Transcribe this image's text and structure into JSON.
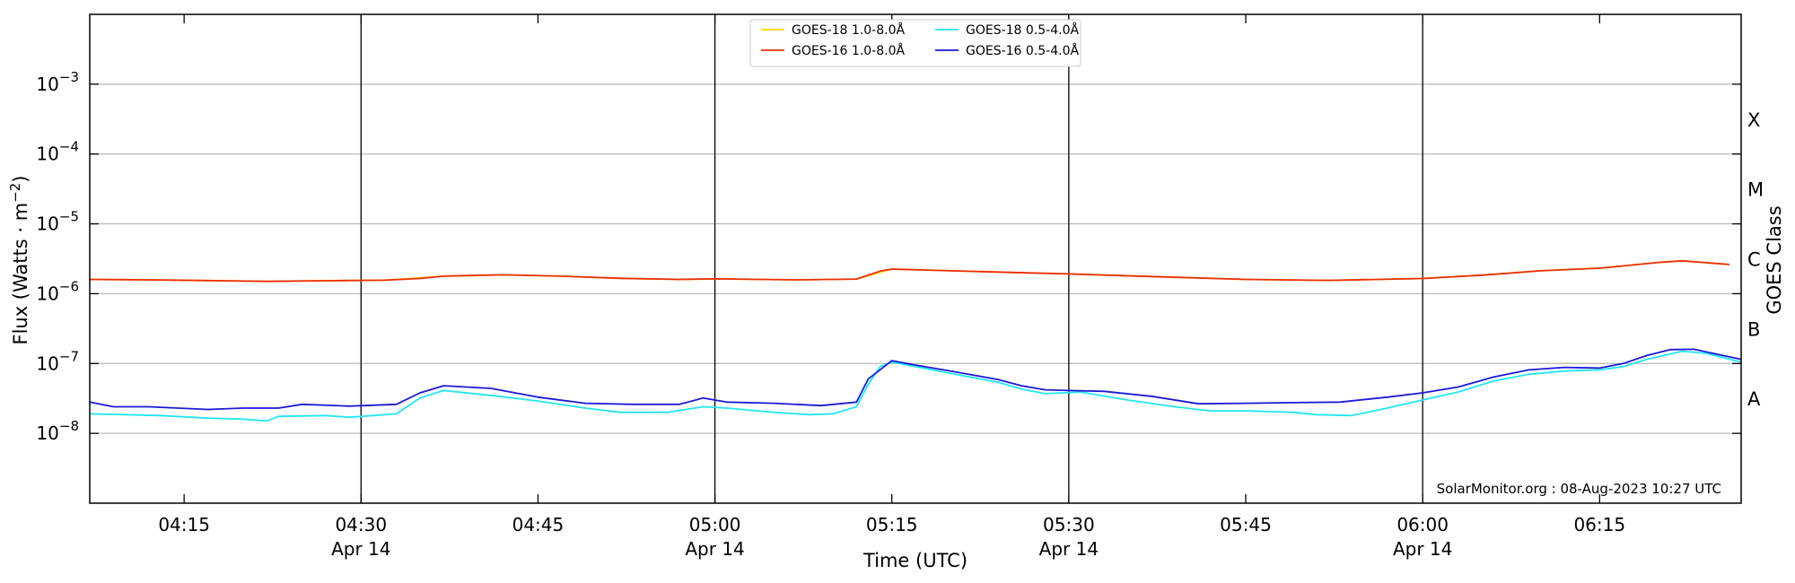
{
  "chart_data": {
    "type": "line",
    "title": "",
    "xlabel": "Time (UTC)",
    "ylabel": "Flux (Watts · m",
    "ylabel_sup": "−2",
    "ylabel_close": ")",
    "right_label": "GOES Class",
    "credit": "SolarMonitor.org : 08-Aug-2023 10:27 UTC",
    "yscale": "log",
    "xlim": [
      "04:07",
      "06:27"
    ],
    "ylim": [
      1e-09,
      0.01
    ],
    "grid": "horizontal",
    "legend_position": "top-center",
    "y_ticks": [
      {
        "value": 1e-08,
        "base": "10",
        "exp": "−8"
      },
      {
        "value": 1e-07,
        "base": "10",
        "exp": "−7"
      },
      {
        "value": 1e-06,
        "base": "10",
        "exp": "−6"
      },
      {
        "value": 1e-05,
        "base": "10",
        "exp": "−5"
      },
      {
        "value": 0.0001,
        "base": "10",
        "exp": "−4"
      },
      {
        "value": 0.001,
        "base": "10",
        "exp": "−3"
      }
    ],
    "x_ticks": [
      {
        "time": "04:15",
        "label": "04:15",
        "date": ""
      },
      {
        "time": "04:30",
        "label": "04:30",
        "date": "Apr 14"
      },
      {
        "time": "04:45",
        "label": "04:45",
        "date": ""
      },
      {
        "time": "05:00",
        "label": "05:00",
        "date": "Apr 14"
      },
      {
        "time": "05:15",
        "label": "05:15",
        "date": ""
      },
      {
        "time": "05:30",
        "label": "05:30",
        "date": "Apr 14"
      },
      {
        "time": "05:45",
        "label": "05:45",
        "date": ""
      },
      {
        "time": "06:00",
        "label": "06:00",
        "date": "Apr 14"
      },
      {
        "time": "06:15",
        "label": "06:15",
        "date": ""
      }
    ],
    "vertical_lines": [
      "04:30",
      "05:00",
      "05:30",
      "06:00"
    ],
    "goes_classes": [
      {
        "label": "A",
        "low": 1e-08,
        "high": 1e-07
      },
      {
        "label": "B",
        "low": 1e-07,
        "high": 1e-06
      },
      {
        "label": "C",
        "low": 1e-06,
        "high": 1e-05
      },
      {
        "label": "M",
        "low": 1e-05,
        "high": 0.0001
      },
      {
        "label": "X",
        "low": 0.0001,
        "high": 0.001
      }
    ],
    "series": [
      {
        "name": "GOES-18 1.0-8.0Å",
        "color": "#ffd700",
        "points": [
          [
            "04:07",
            1.6e-06
          ],
          [
            "04:12",
            1.58e-06
          ],
          [
            "04:17",
            1.54e-06
          ],
          [
            "04:22",
            1.5e-06
          ],
          [
            "04:27",
            1.53e-06
          ],
          [
            "04:32",
            1.56e-06
          ],
          [
            "04:37",
            1.78e-06
          ],
          [
            "04:42",
            1.86e-06
          ],
          [
            "04:47",
            1.78e-06
          ],
          [
            "04:52",
            1.66e-06
          ],
          [
            "04:57",
            1.6e-06
          ],
          [
            "05:00",
            1.63e-06
          ],
          [
            "05:07",
            1.58e-06
          ],
          [
            "05:12",
            1.62e-06
          ],
          [
            "05:15",
            2.25e-06
          ],
          [
            "05:20",
            2.13e-06
          ],
          [
            "05:25",
            2.02e-06
          ],
          [
            "05:30",
            1.92e-06
          ],
          [
            "05:37",
            1.76e-06
          ],
          [
            "05:45",
            1.6e-06
          ],
          [
            "05:52",
            1.55e-06
          ],
          [
            "06:00",
            1.65e-06
          ],
          [
            "06:05",
            1.84e-06
          ],
          [
            "06:10",
            2.13e-06
          ],
          [
            "06:15",
            2.32e-06
          ],
          [
            "06:20",
            2.8e-06
          ],
          [
            "06:22",
            2.95e-06
          ],
          [
            "06:26",
            2.62e-06
          ]
        ]
      },
      {
        "name": "GOES-16 1.0-8.0Å",
        "color": "#e82e0c",
        "points": [
          [
            "04:07",
            1.6e-06
          ],
          [
            "04:12",
            1.58e-06
          ],
          [
            "04:17",
            1.54e-06
          ],
          [
            "04:22",
            1.5e-06
          ],
          [
            "04:27",
            1.53e-06
          ],
          [
            "04:32",
            1.56e-06
          ],
          [
            "04:35",
            1.65e-06
          ],
          [
            "04:37",
            1.78e-06
          ],
          [
            "04:42",
            1.86e-06
          ],
          [
            "04:47",
            1.78e-06
          ],
          [
            "04:52",
            1.66e-06
          ],
          [
            "04:57",
            1.6e-06
          ],
          [
            "05:00",
            1.63e-06
          ],
          [
            "05:07",
            1.58e-06
          ],
          [
            "05:12",
            1.62e-06
          ],
          [
            "05:14",
            2.1e-06
          ],
          [
            "05:15",
            2.25e-06
          ],
          [
            "05:20",
            2.13e-06
          ],
          [
            "05:25",
            2.02e-06
          ],
          [
            "05:30",
            1.92e-06
          ],
          [
            "05:37",
            1.76e-06
          ],
          [
            "05:45",
            1.6e-06
          ],
          [
            "05:52",
            1.55e-06
          ],
          [
            "06:00",
            1.65e-06
          ],
          [
            "06:05",
            1.84e-06
          ],
          [
            "06:10",
            2.13e-06
          ],
          [
            "06:15",
            2.32e-06
          ],
          [
            "06:20",
            2.8e-06
          ],
          [
            "06:22",
            2.95e-06
          ],
          [
            "06:26",
            2.62e-06
          ]
        ]
      },
      {
        "name": "GOES-18 0.5-4.0Å",
        "color": "#22e6f2",
        "points": [
          [
            "04:07",
            1.9e-08
          ],
          [
            "04:10",
            1.85e-08
          ],
          [
            "04:13",
            1.8e-08
          ],
          [
            "04:17",
            1.65e-08
          ],
          [
            "04:20",
            1.6e-08
          ],
          [
            "04:22",
            1.5e-08
          ],
          [
            "04:23",
            1.75e-08
          ],
          [
            "04:27",
            1.8e-08
          ],
          [
            "04:29",
            1.7e-08
          ],
          [
            "04:31",
            1.8e-08
          ],
          [
            "04:33",
            1.9e-08
          ],
          [
            "04:35",
            3.2e-08
          ],
          [
            "04:37",
            4.1e-08
          ],
          [
            "04:41",
            3.5e-08
          ],
          [
            "04:45",
            2.9e-08
          ],
          [
            "04:49",
            2.3e-08
          ],
          [
            "04:52",
            2e-08
          ],
          [
            "04:56",
            2e-08
          ],
          [
            "04:59",
            2.4e-08
          ],
          [
            "05:01",
            2.3e-08
          ],
          [
            "05:05",
            2e-08
          ],
          [
            "05:08",
            1.85e-08
          ],
          [
            "05:10",
            1.9e-08
          ],
          [
            "05:12",
            2.4e-08
          ],
          [
            "05:13",
            5e-08
          ],
          [
            "05:14",
            9e-08
          ],
          [
            "05:15",
            1.05e-07
          ],
          [
            "05:17",
            9e-08
          ],
          [
            "05:20",
            7.2e-08
          ],
          [
            "05:24",
            5.4e-08
          ],
          [
            "05:26",
            4.3e-08
          ],
          [
            "05:28",
            3.7e-08
          ],
          [
            "05:31",
            3.9e-08
          ],
          [
            "05:35",
            3e-08
          ],
          [
            "05:39",
            2.4e-08
          ],
          [
            "05:42",
            2.1e-08
          ],
          [
            "05:45",
            2.1e-08
          ],
          [
            "05:49",
            2e-08
          ],
          [
            "05:51",
            1.85e-08
          ],
          [
            "05:54",
            1.8e-08
          ],
          [
            "05:57",
            2.3e-08
          ],
          [
            "06:00",
            3e-08
          ],
          [
            "06:03",
            3.9e-08
          ],
          [
            "06:06",
            5.6e-08
          ],
          [
            "06:09",
            7e-08
          ],
          [
            "06:12",
            7.8e-08
          ],
          [
            "06:15",
            8.1e-08
          ],
          [
            "06:17",
            9e-08
          ],
          [
            "06:19",
            1.15e-07
          ],
          [
            "06:22",
            1.5e-07
          ],
          [
            "06:24",
            1.4e-07
          ],
          [
            "06:27",
            1.05e-07
          ]
        ]
      },
      {
        "name": "GOES-16 0.5-4.0Å",
        "color": "#1a1ad6",
        "points": [
          [
            "04:07",
            2.8e-08
          ],
          [
            "04:09",
            2.4e-08
          ],
          [
            "04:12",
            2.4e-08
          ],
          [
            "04:17",
            2.2e-08
          ],
          [
            "04:20",
            2.3e-08
          ],
          [
            "04:23",
            2.3e-08
          ],
          [
            "04:25",
            2.6e-08
          ],
          [
            "04:29",
            2.45e-08
          ],
          [
            "04:33",
            2.6e-08
          ],
          [
            "04:35",
            3.8e-08
          ],
          [
            "04:37",
            4.8e-08
          ],
          [
            "04:41",
            4.4e-08
          ],
          [
            "04:45",
            3.3e-08
          ],
          [
            "04:49",
            2.7e-08
          ],
          [
            "04:53",
            2.6e-08
          ],
          [
            "04:57",
            2.6e-08
          ],
          [
            "04:59",
            3.2e-08
          ],
          [
            "05:01",
            2.8e-08
          ],
          [
            "05:05",
            2.7e-08
          ],
          [
            "05:09",
            2.5e-08
          ],
          [
            "05:12",
            2.8e-08
          ],
          [
            "05:13",
            6e-08
          ],
          [
            "05:15",
            1.1e-07
          ],
          [
            "05:17",
            9.5e-08
          ],
          [
            "05:20",
            7.8e-08
          ],
          [
            "05:24",
            5.9e-08
          ],
          [
            "05:26",
            4.8e-08
          ],
          [
            "05:28",
            4.2e-08
          ],
          [
            "05:30",
            4.1e-08
          ],
          [
            "05:33",
            4e-08
          ],
          [
            "05:37",
            3.4e-08
          ],
          [
            "05:41",
            2.65e-08
          ],
          [
            "05:45",
            2.7e-08
          ],
          [
            "05:49",
            2.75e-08
          ],
          [
            "05:53",
            2.8e-08
          ],
          [
            "05:57",
            3.3e-08
          ],
          [
            "06:00",
            3.8e-08
          ],
          [
            "06:03",
            4.6e-08
          ],
          [
            "06:06",
            6.4e-08
          ],
          [
            "06:09",
            8.1e-08
          ],
          [
            "06:12",
            8.8e-08
          ],
          [
            "06:15",
            8.6e-08
          ],
          [
            "06:17",
            1e-07
          ],
          [
            "06:19",
            1.3e-07
          ],
          [
            "06:21",
            1.58e-07
          ],
          [
            "06:23",
            1.6e-07
          ],
          [
            "06:27",
            1.15e-07
          ]
        ]
      }
    ]
  }
}
